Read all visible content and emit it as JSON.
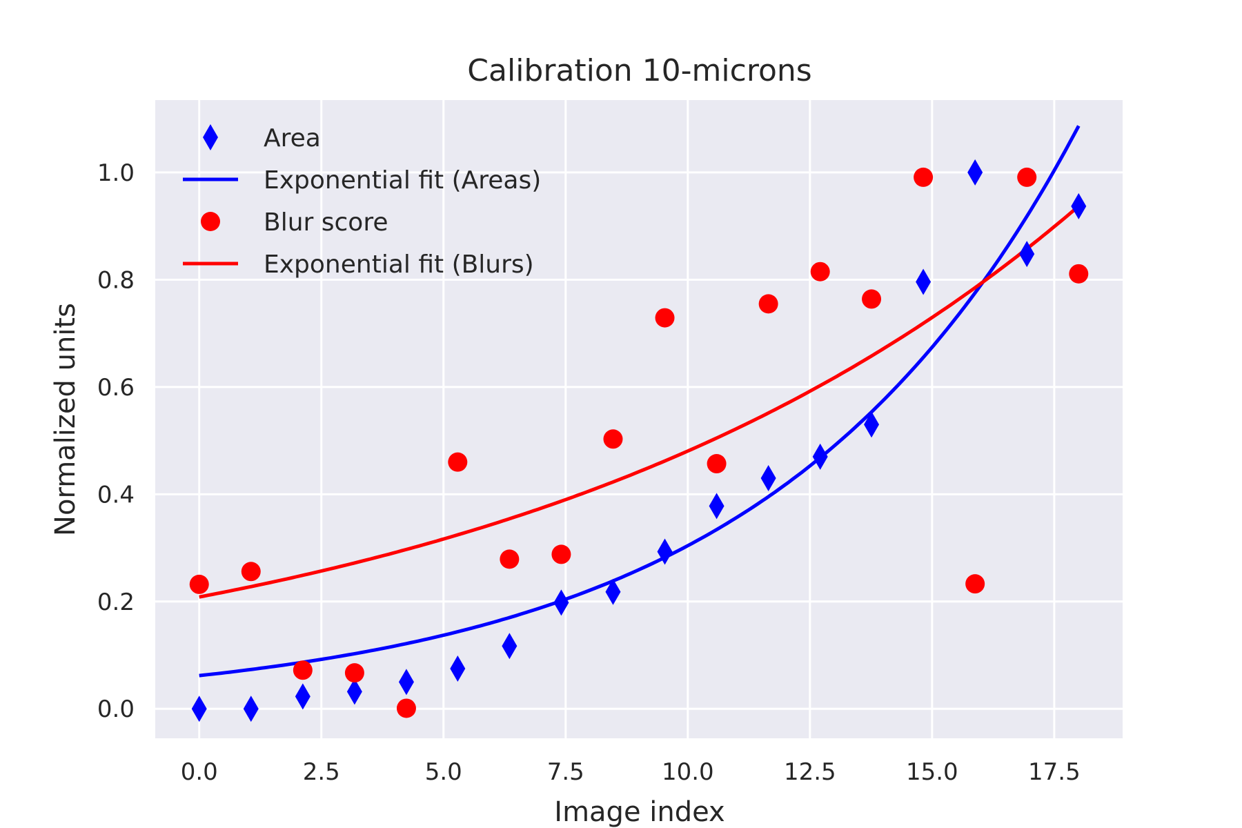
{
  "chart_data": {
    "type": "scatter",
    "title": "Calibration 10-microns",
    "xlabel": "Image index",
    "ylabel": "Normalized units",
    "xlim": [
      -0.9,
      18.9
    ],
    "ylim": [
      -0.055,
      1.135
    ],
    "x_ticks": [
      "0.0",
      "2.5",
      "5.0",
      "7.5",
      "10.0",
      "12.5",
      "15.0",
      "17.5"
    ],
    "y_ticks": [
      "0.0",
      "0.2",
      "0.4",
      "0.6",
      "0.8",
      "1.0"
    ],
    "grid": true,
    "legend_position": "top-left",
    "background_color": "#eaeaf2",
    "series": [
      {
        "name": "Area",
        "kind": "scatter",
        "marker": "thin-diamond",
        "color": "#0000ff",
        "x": [
          0,
          1.06,
          2.12,
          3.18,
          4.24,
          5.29,
          6.35,
          7.41,
          8.47,
          9.53,
          10.59,
          11.65,
          12.71,
          13.76,
          14.82,
          15.88,
          16.94,
          18.0
        ],
        "y": [
          0.0,
          0.0,
          0.023,
          0.032,
          0.05,
          0.075,
          0.117,
          0.198,
          0.218,
          0.293,
          0.378,
          0.43,
          0.47,
          0.53,
          0.796,
          1.0,
          0.848,
          0.937
        ]
      },
      {
        "name": "Exponential fit (Areas)",
        "kind": "line",
        "color": "#0000ff",
        "model": {
          "a": 0.0619,
          "b": 0.1592
        },
        "x_range": [
          0,
          18
        ]
      },
      {
        "name": "Blur score",
        "kind": "scatter",
        "marker": "circle",
        "color": "#ff0000",
        "x": [
          0,
          1.06,
          2.12,
          3.18,
          4.24,
          5.29,
          6.35,
          7.41,
          8.47,
          9.53,
          10.59,
          11.65,
          12.71,
          13.76,
          14.82,
          15.88,
          16.94,
          18.0
        ],
        "y": [
          0.232,
          0.256,
          0.072,
          0.067,
          0.001,
          0.46,
          0.279,
          0.288,
          0.503,
          0.729,
          0.457,
          0.755,
          0.815,
          0.764,
          0.991,
          0.233,
          0.991,
          0.811
        ]
      },
      {
        "name": "Exponential fit (Blurs)",
        "kind": "line",
        "color": "#ff0000",
        "model": {
          "a": 0.2085,
          "b": 0.0835
        },
        "x_range": [
          0,
          18
        ]
      }
    ]
  }
}
